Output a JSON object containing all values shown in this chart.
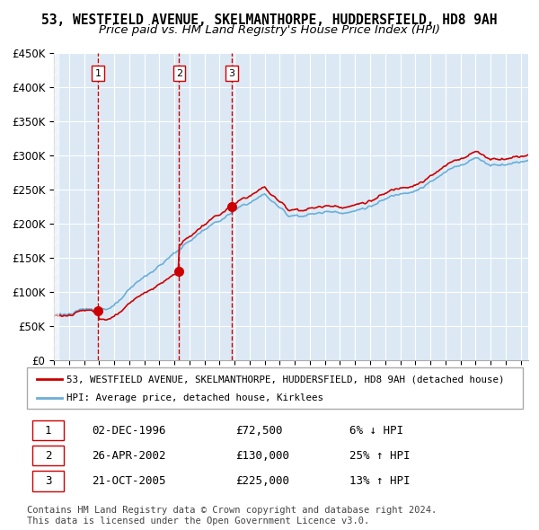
{
  "title1": "53, WESTFIELD AVENUE, SKELMANTHORPE, HUDDERSFIELD, HD8 9AH",
  "title2": "Price paid vs. HM Land Registry's House Price Index (HPI)",
  "legend1": "53, WESTFIELD AVENUE, SKELMANTHORPE, HUDDERSFIELD, HD8 9AH (detached house)",
  "legend2": "HPI: Average price, detached house, Kirklees",
  "sales": [
    {
      "num": 1,
      "date_label": "02-DEC-1996",
      "price": 72500,
      "year": 1996.92,
      "hpi_pct": "6% ↓ HPI"
    },
    {
      "num": 2,
      "date_label": "26-APR-2002",
      "price": 130000,
      "year": 2002.32,
      "hpi_pct": "25% ↑ HPI"
    },
    {
      "num": 3,
      "date_label": "21-OCT-2005",
      "price": 225000,
      "year": 2005.8,
      "hpi_pct": "13% ↑ HPI"
    }
  ],
  "ylim": [
    0,
    450000
  ],
  "yticks": [
    0,
    50000,
    100000,
    150000,
    200000,
    250000,
    300000,
    350000,
    400000,
    450000
  ],
  "ytick_labels": [
    "£0",
    "£50K",
    "£100K",
    "£150K",
    "£200K",
    "£250K",
    "£300K",
    "£350K",
    "£400K",
    "£450K"
  ],
  "hpi_color": "#6baed6",
  "sale_color": "#cc0000",
  "bg_color": "#dce9f5",
  "grid_color": "#ffffff",
  "vline_color": "#cc0000",
  "footer_text": "Contains HM Land Registry data © Crown copyright and database right 2024.\nThis data is licensed under the Open Government Licence v3.0.",
  "title_fontsize": 11,
  "subtitle_fontsize": 10
}
